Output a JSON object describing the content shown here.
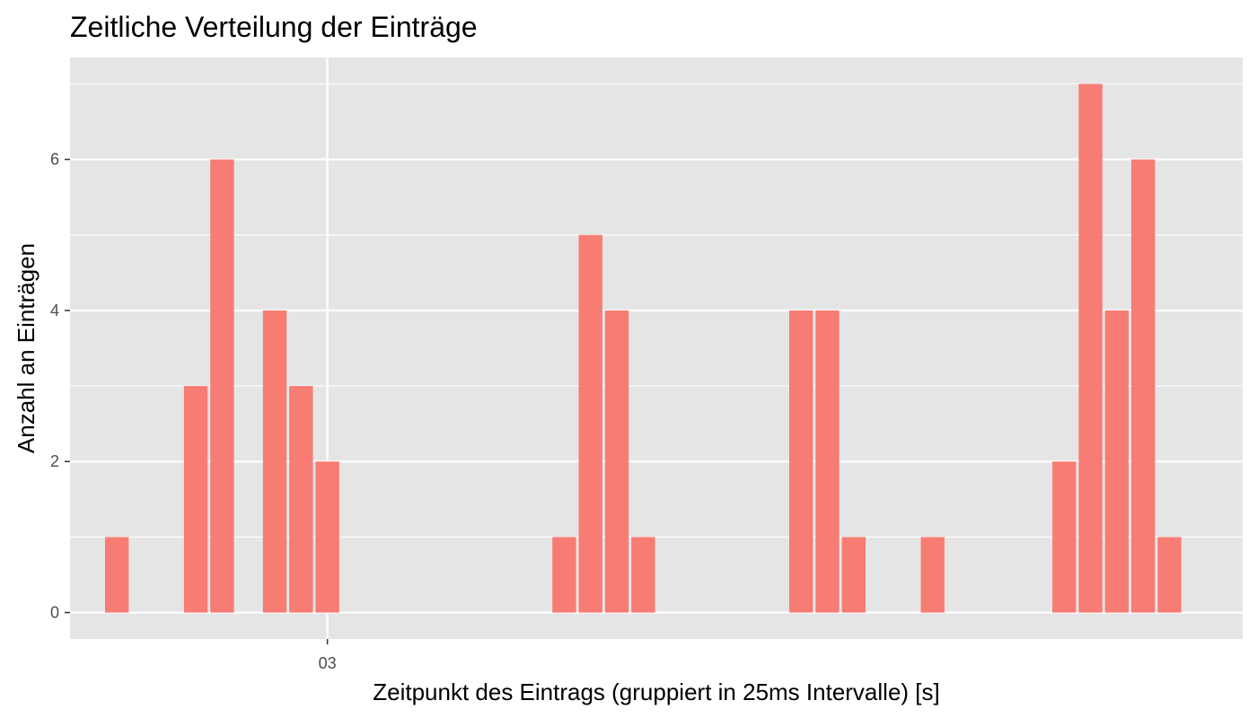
{
  "chart_data": {
    "type": "bar",
    "title": "Zeitliche Verteilung der Einträge",
    "xlabel": "Zeitpunkt des Eintrags (gruppiert in 25ms Intervalle) [s]",
    "ylabel": "Anzahl an Einträgen",
    "x_ticks": [
      {
        "label": "03",
        "bin": 9
      }
    ],
    "y_ticks": [
      0,
      2,
      4,
      6
    ],
    "ylim": [
      -0.35,
      7.35
    ],
    "xlim": [
      -0.78,
      43.78
    ],
    "grid": true,
    "bar_color": "#F8766D",
    "panel_color": "#E5E5E5",
    "x_unit": "25 ms interval index",
    "bins": [
      1,
      4,
      5,
      7,
      8,
      9,
      18,
      19,
      20,
      21,
      27,
      28,
      29,
      32,
      37,
      38,
      39,
      40,
      41
    ],
    "values": [
      1,
      3,
      6,
      4,
      3,
      2,
      1,
      5,
      4,
      1,
      4,
      4,
      1,
      1,
      2,
      7,
      4,
      6,
      1
    ]
  }
}
